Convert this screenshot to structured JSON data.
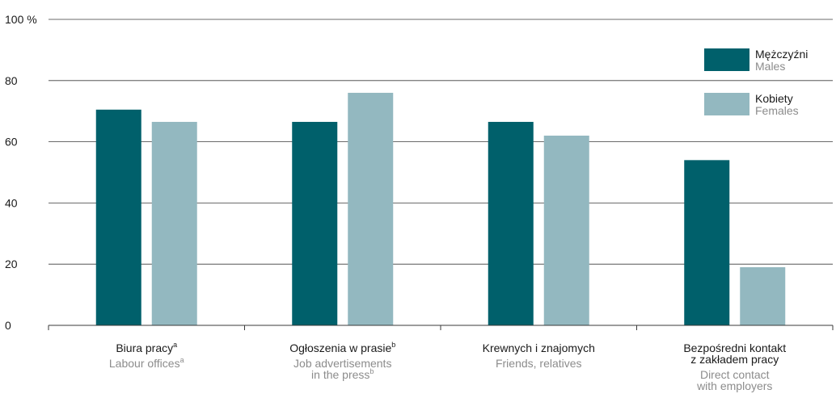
{
  "chart_data": {
    "type": "bar",
    "title": "",
    "xlabel": "",
    "ylabel": "",
    "ylim": [
      0,
      100
    ],
    "yticks": [
      0,
      20,
      40,
      60,
      80,
      100
    ],
    "ytick_labels": [
      "0",
      "20",
      "40",
      "60",
      "80",
      "100 %"
    ],
    "grid": true,
    "legend_position": "top-right",
    "categories": [
      {
        "pl": "Biura pracy",
        "pl_sup": "a",
        "en": [
          "Labour offices"
        ],
        "en_sup": "a"
      },
      {
        "pl": "Ogłoszenia w prasie",
        "pl_sup": "b",
        "en": [
          "Job advertisements",
          "in the press"
        ],
        "en_sup": "b"
      },
      {
        "pl": "Krewnych i znajomych",
        "pl_sup": "",
        "en": [
          "Friends, relatives"
        ],
        "en_sup": ""
      },
      {
        "pl": [
          "Bezpośredni kontakt",
          "z zakładem pracy"
        ],
        "pl_sup": "",
        "en": [
          "Direct contact",
          "with employers"
        ],
        "en_sup": ""
      }
    ],
    "series": [
      {
        "name": "Mężczyźni",
        "name_en": "Males",
        "color": "#00606b",
        "values": [
          70.5,
          66.5,
          66.5,
          54
        ]
      },
      {
        "name": "Kobiety",
        "name_en": "Females",
        "color": "#93b8c0",
        "values": [
          66.5,
          76,
          62,
          19
        ]
      }
    ]
  }
}
